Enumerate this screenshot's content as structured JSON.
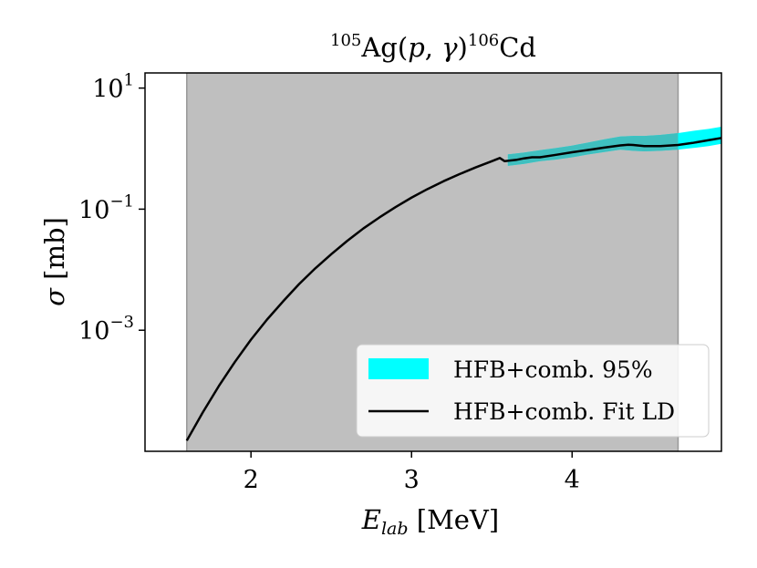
{
  "chart_data": {
    "type": "line",
    "title": "105Ag(p,γ)106Cd",
    "title_parts": {
      "sup1": "105",
      "main1": "Ag(",
      "p": "p",
      "sep": ", ",
      "gamma": "γ",
      "main2": ")",
      "sup2": "106",
      "main3": "Cd"
    },
    "xlabel": "E_lab [MeV]",
    "xlabel_parts": {
      "E": "E",
      "sub": "lab",
      "unit": " [MeV]"
    },
    "ylabel": "σ [mb]",
    "ylabel_parts": {
      "sigma": "σ",
      "unit": " [mb]"
    },
    "xlim": [
      1.34,
      4.93
    ],
    "ylim_log10": [
      -5.0,
      1.25
    ],
    "y_scale": "log",
    "x_ticks": [
      {
        "value": 2,
        "label": "2"
      },
      {
        "value": 3,
        "label": "3"
      },
      {
        "value": 4,
        "label": "4"
      }
    ],
    "y_ticks": [
      {
        "exp": 1,
        "base": "10",
        "sup": "1"
      },
      {
        "exp": -1,
        "base": "10",
        "sup": "−1"
      },
      {
        "exp": -3,
        "base": "10",
        "sup": "−3"
      }
    ],
    "shaded_region": {
      "x_start": 1.6,
      "x_end": 4.66,
      "color": "#bfbfbf"
    },
    "band": {
      "name": "HFB+comb. 95%",
      "color": "#00ffff",
      "overlap_color": "#3fbfbf",
      "x": [
        3.6,
        3.7,
        3.8,
        3.9,
        4.0,
        4.1,
        4.2,
        4.3,
        4.38,
        4.45,
        4.55,
        4.66,
        4.75,
        4.85,
        4.93
      ],
      "y_low": [
        0.52,
        0.56,
        0.62,
        0.66,
        0.72,
        0.8,
        0.88,
        0.96,
        0.92,
        0.9,
        0.92,
        0.96,
        1.02,
        1.1,
        1.2
      ],
      "y_high": [
        0.8,
        0.86,
        0.94,
        1.02,
        1.12,
        1.26,
        1.42,
        1.58,
        1.62,
        1.62,
        1.68,
        1.8,
        1.96,
        2.12,
        2.3
      ]
    },
    "series": [
      {
        "name": "HFB+comb. Fit LD",
        "color": "#000000",
        "x": [
          1.6,
          1.7,
          1.8,
          1.9,
          2.0,
          2.1,
          2.2,
          2.3,
          2.4,
          2.5,
          2.6,
          2.7,
          2.8,
          2.9,
          3.0,
          3.1,
          3.2,
          3.3,
          3.4,
          3.5,
          3.55,
          3.58,
          3.65,
          3.7,
          3.75,
          3.8,
          3.9,
          4.0,
          4.1,
          4.2,
          4.3,
          4.35,
          4.38,
          4.45,
          4.55,
          4.66,
          4.75,
          4.85,
          4.93
        ],
        "y": [
          1.5e-05,
          4.4e-05,
          0.00012,
          0.0003,
          0.0007,
          0.0015,
          0.003,
          0.0058,
          0.0105,
          0.018,
          0.03,
          0.048,
          0.073,
          0.108,
          0.155,
          0.215,
          0.29,
          0.38,
          0.49,
          0.62,
          0.7,
          0.62,
          0.65,
          0.69,
          0.72,
          0.72,
          0.79,
          0.87,
          0.95,
          1.04,
          1.13,
          1.16,
          1.15,
          1.1,
          1.1,
          1.15,
          1.24,
          1.38,
          1.5
        ]
      }
    ],
    "legend": {
      "position": "lower-right",
      "entries": [
        "HFB+comb. 95%",
        "HFB+comb. Fit LD"
      ]
    },
    "grid": false
  }
}
